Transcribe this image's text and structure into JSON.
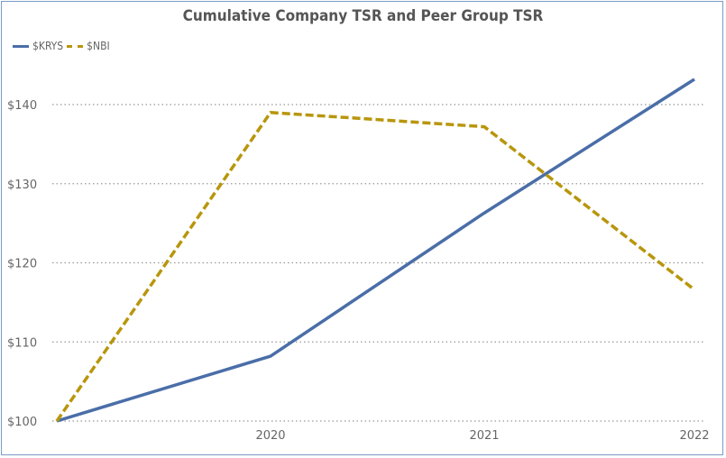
{
  "chart_data": {
    "type": "line",
    "title": "Cumulative Company TSR and Peer Group TSR",
    "x": [
      "2019",
      "2020",
      "2021",
      "2022"
    ],
    "x_tick_labels": [
      "",
      "2020",
      "2021",
      "2022"
    ],
    "y_tick_labels": [
      "$100",
      "$110",
      "$120",
      "$130",
      "$140"
    ],
    "y_ticks": [
      100,
      110,
      120,
      130,
      140
    ],
    "ylim": [
      100,
      143.5
    ],
    "grid": true,
    "legend_position": "top-left",
    "series": [
      {
        "name": "$KRYS",
        "color": "#4a6ea8",
        "style": "solid",
        "values": [
          100,
          108.2,
          126.3,
          143.2
        ]
      },
      {
        "name": "$NBI",
        "color": "#b8960c",
        "style": "dashed",
        "values": [
          100,
          139.0,
          137.2,
          116.6
        ]
      }
    ]
  }
}
